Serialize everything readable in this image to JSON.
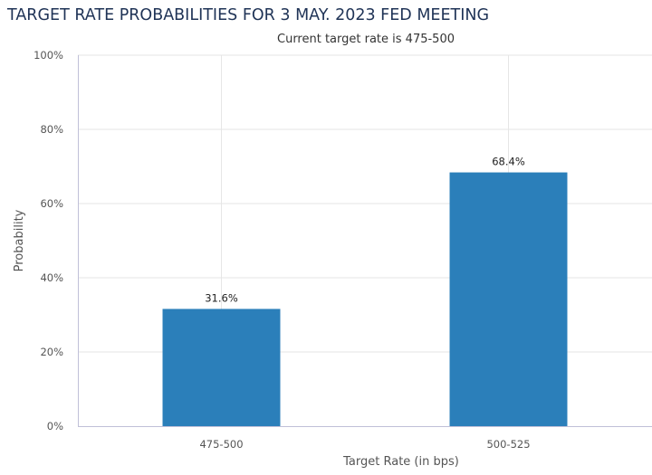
{
  "chart_data": {
    "type": "bar",
    "title": "TARGET RATE PROBABILITIES FOR 3 MAY. 2023 FED MEETING",
    "subtitle": "Current target rate is 475-500",
    "xlabel": "Target Rate (in bps)",
    "ylabel": "Probability",
    "categories": [
      "475-500",
      "500-525"
    ],
    "values": [
      31.6,
      68.4
    ],
    "data_labels": [
      "31.6%",
      "68.4%"
    ],
    "ylim": [
      0,
      100
    ],
    "yticks": [
      0,
      20,
      40,
      60,
      80,
      100
    ],
    "ytick_labels": [
      "0%",
      "20%",
      "40%",
      "60%",
      "80%",
      "100%"
    ],
    "grid": true,
    "legend": "none",
    "colors": {
      "bar": "#2b7fba",
      "grid": "#e6e6e6",
      "axis": "#c0c0d8",
      "title": "#1f3356"
    }
  }
}
